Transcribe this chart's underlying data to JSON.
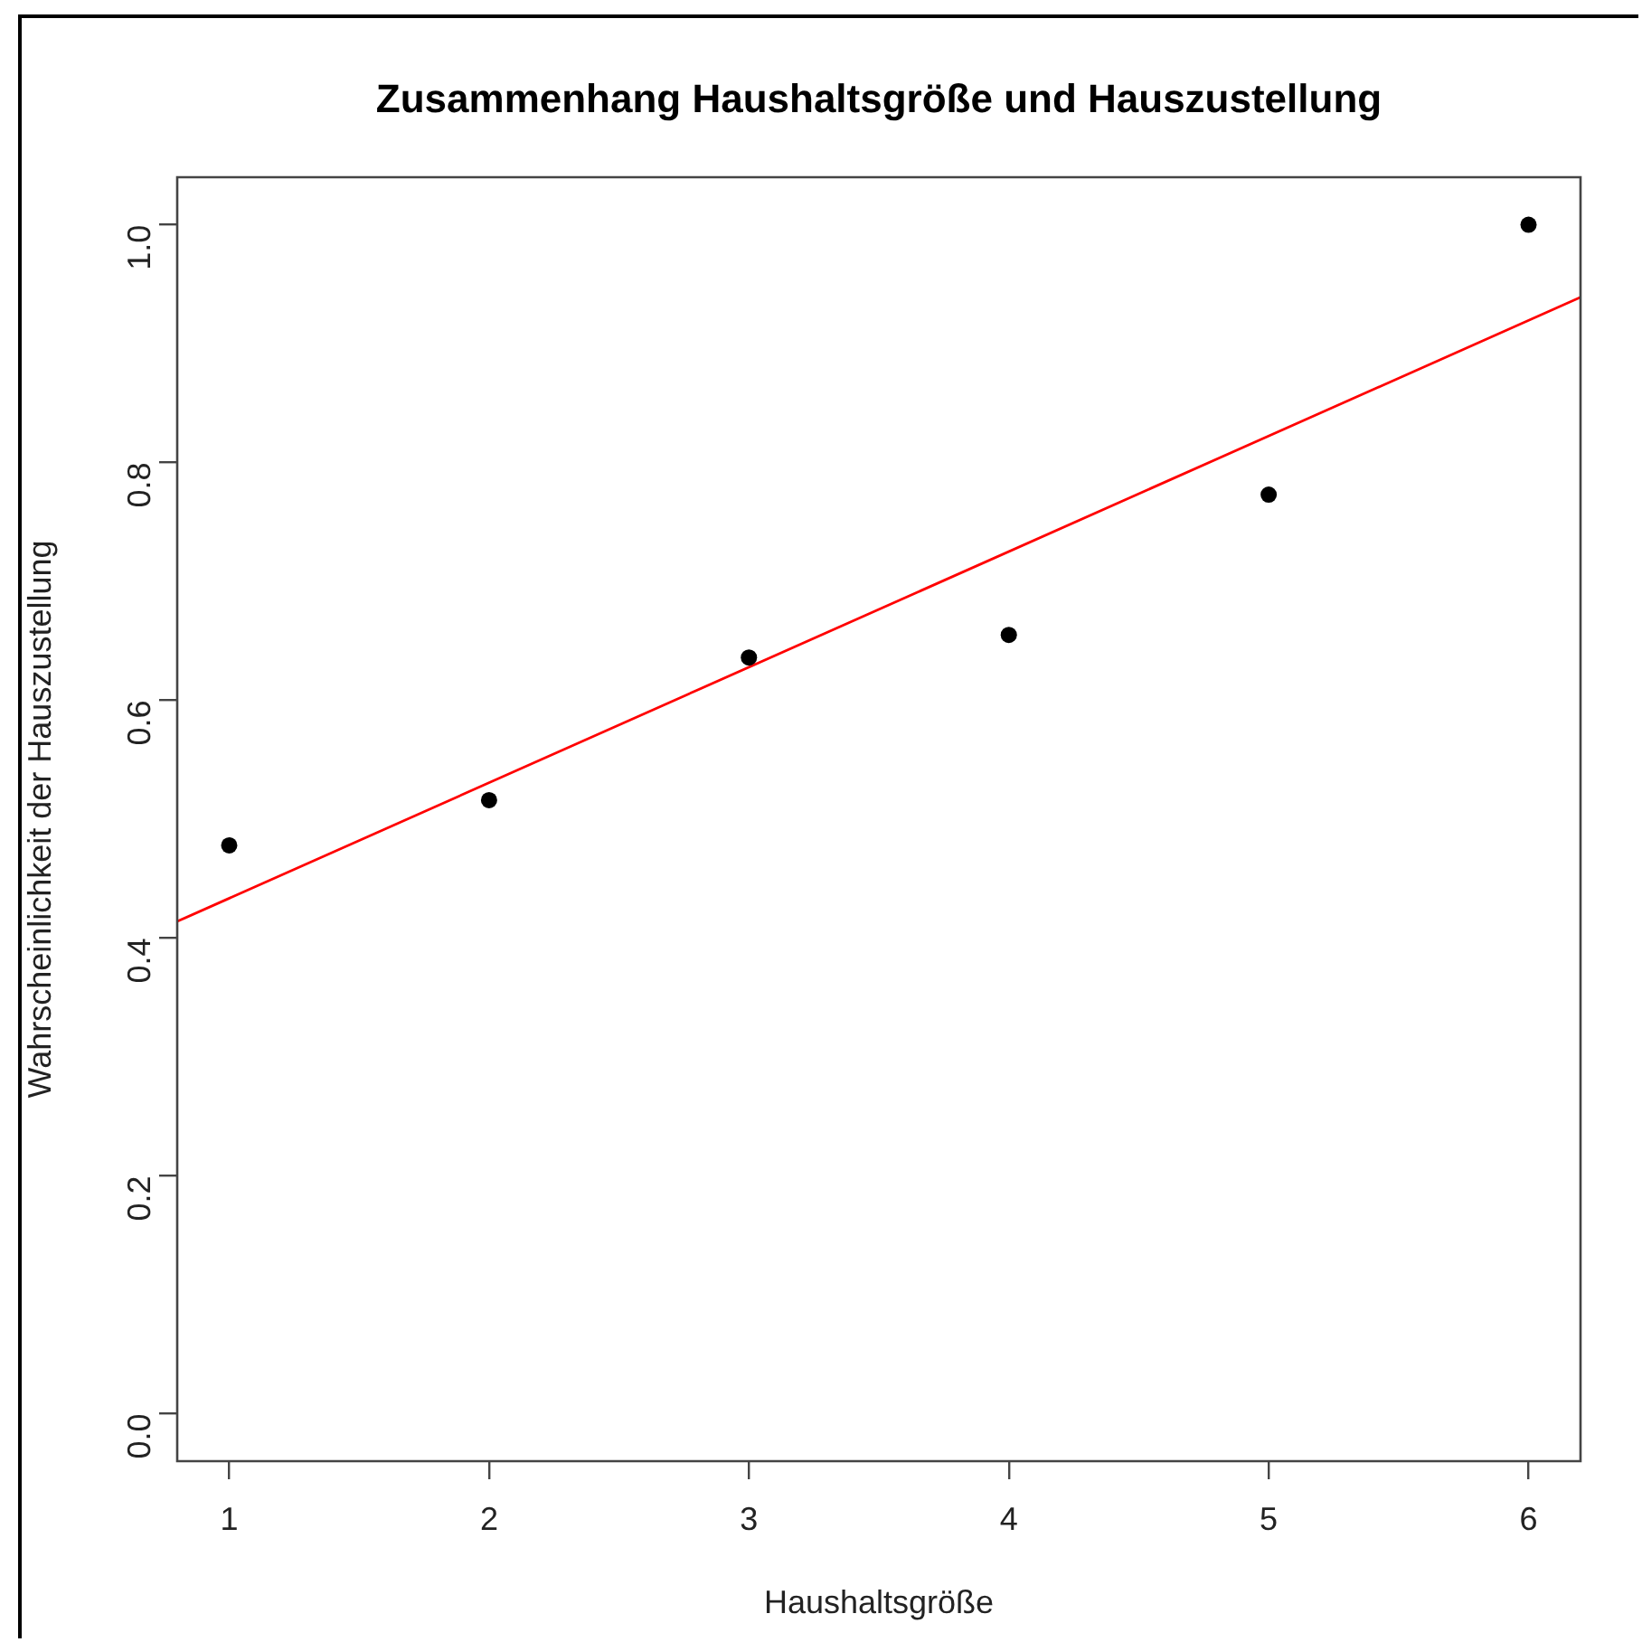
{
  "chart_data": {
    "type": "scatter",
    "title": "Zusammenhang Haushaltsgröße und Hauszustellung",
    "xlabel": "Haushaltsgröße",
    "ylabel": "Wahrscheinlichkeit der Hauszustellung",
    "x": [
      1,
      2,
      3,
      4,
      5,
      6
    ],
    "series": [
      {
        "type": "scatter",
        "color": "#000000",
        "marker": "circle",
        "values": [
          0.478,
          0.516,
          0.636,
          0.655,
          0.773,
          1.0
        ]
      },
      {
        "type": "line",
        "x": [
          0.8,
          6.2
        ],
        "color": "#ff0000",
        "marker": "none",
        "line_style": "solid",
        "values": [
          0.414,
          0.939
        ]
      }
    ],
    "xlim": [
      0.8,
      6.2
    ],
    "ylim": [
      -0.04,
      1.04
    ],
    "xticks": [
      1,
      2,
      3,
      4,
      5,
      6
    ],
    "yticks": [
      {
        "value": 0,
        "label": "0.0"
      },
      0.2,
      0.4,
      0.6,
      0.8,
      {
        "value": 1,
        "label": "1.0"
      }
    ],
    "grid": false
  }
}
